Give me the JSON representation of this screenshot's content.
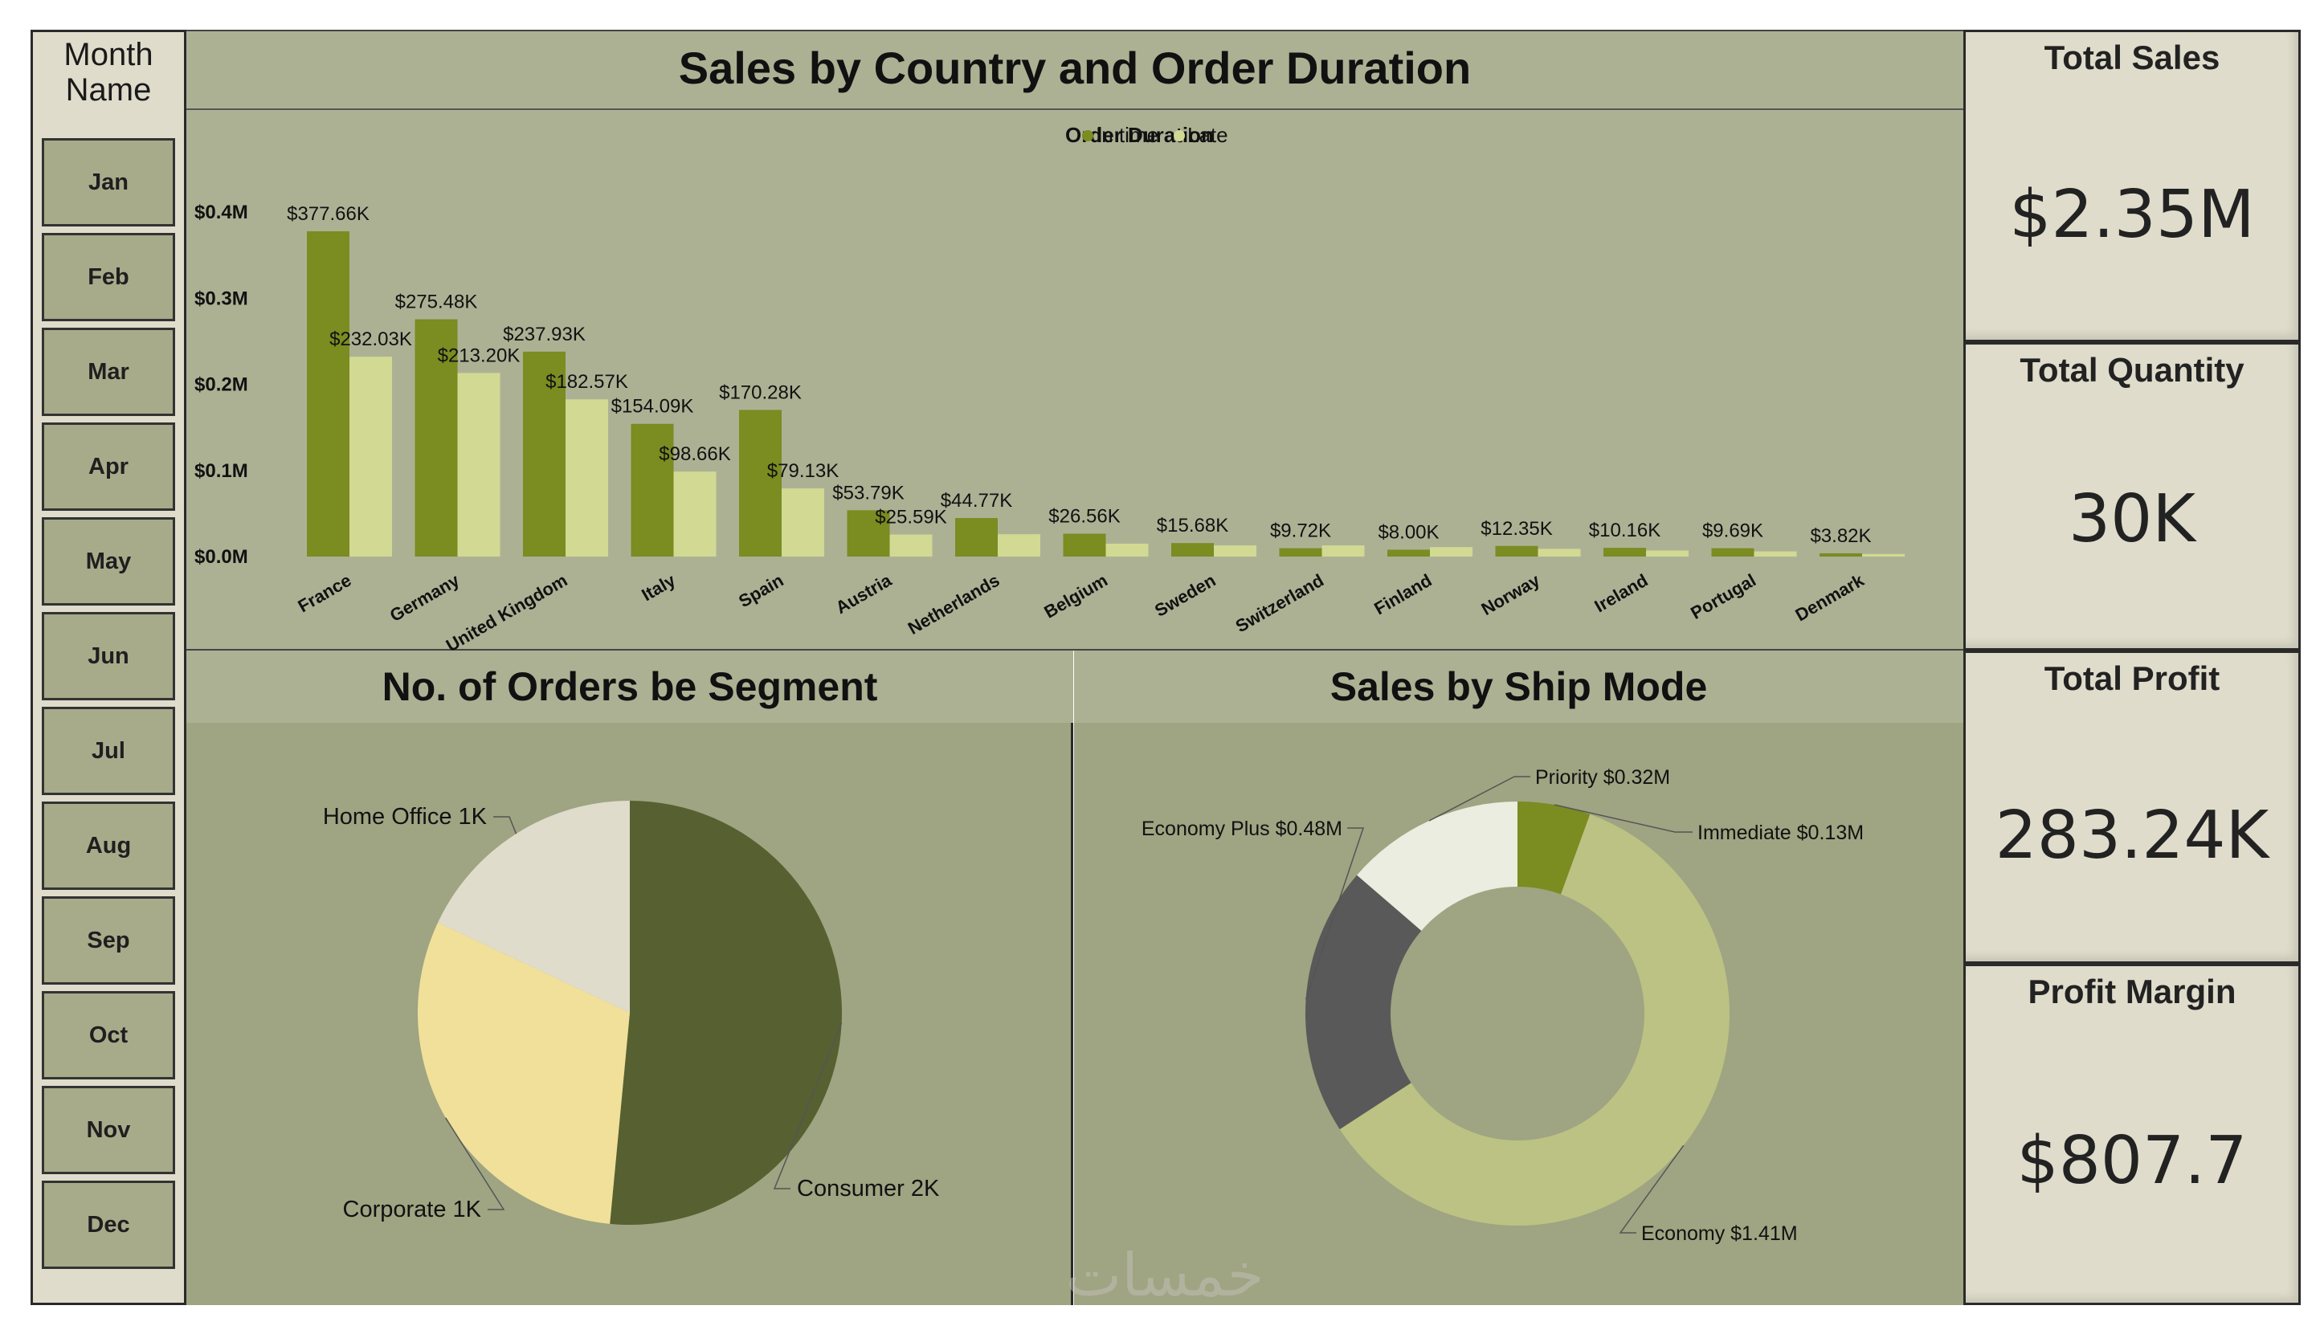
{
  "slicer": {
    "title": "Month Name",
    "months": [
      "Jan",
      "Feb",
      "Mar",
      "Apr",
      "May",
      "Jun",
      "Jul",
      "Aug",
      "Sep",
      "Oct",
      "Nov",
      "Dec"
    ]
  },
  "kpis": [
    {
      "title": "Total Sales",
      "value": "$2.35M"
    },
    {
      "title": "Total Quantity",
      "value": "30K"
    },
    {
      "title": "Total Profit",
      "value": "283.24K"
    },
    {
      "title": "Profit Margin",
      "value": "$807.7"
    }
  ],
  "colors": {
    "in_time": "#7b8c21",
    "late": "#d2d993",
    "consumer": "#576031",
    "corporate": "#f0e099",
    "home_office": "#dfdccb",
    "economy": "#bcc283",
    "economy_plus": "#595959",
    "priority": "#eaeddf",
    "immediate": "#7b8c21"
  },
  "watermark": "خمسات",
  "chart_data": [
    {
      "type": "bar",
      "title": "Sales by Country and Order Duration",
      "legend_title": "Order Duration",
      "legend_position": "top",
      "categories": [
        "France",
        "Germany",
        "United Kingdom",
        "Italy",
        "Spain",
        "Austria",
        "Netherlands",
        "Belgium",
        "Sweden",
        "Switzerland",
        "Finland",
        "Norway",
        "Ireland",
        "Portugal",
        "Denmark"
      ],
      "series": [
        {
          "name": "In time",
          "values": [
            377.66,
            275.48,
            237.93,
            154.09,
            170.28,
            53.79,
            44.77,
            26.56,
            15.68,
            9.72,
            8.0,
            12.35,
            10.16,
            9.69,
            3.82
          ],
          "labels": [
            "$377.66K",
            "$275.48K",
            "$237.93K",
            "$154.09K",
            "$170.28K",
            "$53.79K",
            "$44.77K",
            "$26.56K",
            "$15.68K",
            "$9.72K",
            "$8.00K",
            "$12.35K",
            "$10.16K",
            "$9.69K",
            "$3.82K"
          ]
        },
        {
          "name": "Late",
          "values": [
            232.03,
            213.2,
            182.57,
            98.66,
            79.13,
            25.59,
            26,
            15,
            13,
            13,
            11,
            9,
            7,
            6,
            3
          ],
          "labels": [
            "$232.03K",
            "$213.20K",
            "$182.57K",
            "$98.66K",
            "$79.13K",
            "$25.59K",
            "",
            "",
            "",
            "",
            "",
            "",
            "",
            "",
            ""
          ]
        }
      ],
      "yticks": [
        "$0.0M",
        "$0.1M",
        "$0.2M",
        "$0.3M",
        "$0.4M"
      ],
      "ylim": [
        0,
        400
      ],
      "grid": false
    },
    {
      "type": "pie",
      "title": "No. of Orders be Segment",
      "slices": [
        {
          "name": "Consumer",
          "label": "Consumer 2K",
          "value": 51.5
        },
        {
          "name": "Corporate",
          "label": "Corporate 1K",
          "value": 30.5
        },
        {
          "name": "Home Office",
          "label": "Home Office 1K",
          "value": 18
        }
      ]
    },
    {
      "type": "pie",
      "title": "Sales by Ship Mode",
      "donut": true,
      "slices": [
        {
          "name": "Immediate",
          "label": "Immediate $0.13M",
          "value": 0.13
        },
        {
          "name": "Economy",
          "label": "Economy $1.41M",
          "value": 1.41
        },
        {
          "name": "Economy Plus",
          "label": "Economy Plus $0.48M",
          "value": 0.48
        },
        {
          "name": "Priority",
          "label": "Priority $0.32M",
          "value": 0.32
        }
      ]
    }
  ]
}
